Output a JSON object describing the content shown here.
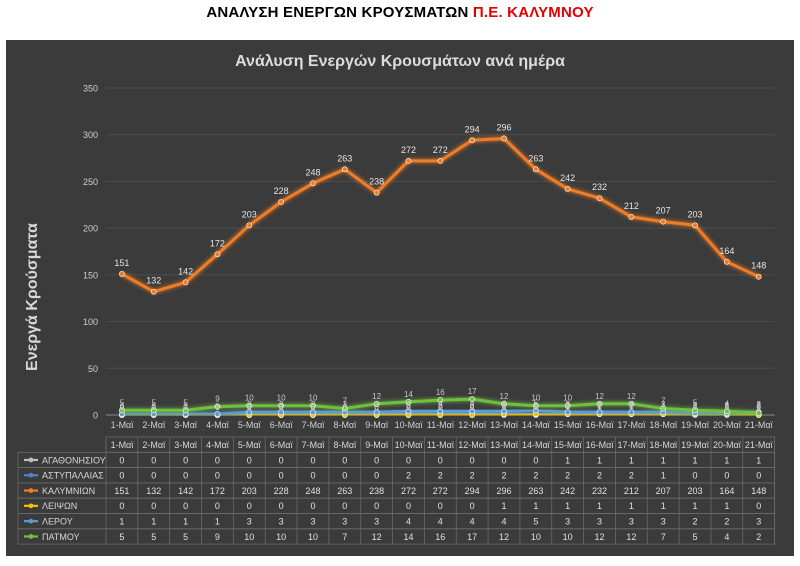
{
  "page": {
    "title_prefix": "ΑΝΑΛΥΣΗ ΕΝΕΡΓΩΝ ΚΡΟΥΣΜΑΤΩΝ ",
    "title_highlight": "Π.Ε. ΚΑΛΥΜΝΟΥ"
  },
  "chart_data": {
    "type": "line",
    "title": "Ανάλυση Ενεργών Κρουσμάτων ανά ημέρα",
    "ylabel": "Ενεργά Κρούσματα",
    "xlabel": "",
    "ylim": [
      0,
      350
    ],
    "yticks": [
      0,
      50,
      100,
      150,
      200,
      250,
      300,
      350
    ],
    "grid": true,
    "legend": "data-table",
    "categories": [
      "1-Μαϊ",
      "2-Μαϊ",
      "3-Μαϊ",
      "4-Μαϊ",
      "5-Μαϊ",
      "6-Μαϊ",
      "7-Μαϊ",
      "8-Μαϊ",
      "9-Μαϊ",
      "10-Μαϊ",
      "11-Μαϊ",
      "12-Μαϊ",
      "13-Μαϊ",
      "14-Μαϊ",
      "15-Μαϊ",
      "16-Μαϊ",
      "17-Μαϊ",
      "18-Μαϊ",
      "19-Μαϊ",
      "20-Μαϊ",
      "21-Μαϊ"
    ],
    "series": [
      {
        "name": "ΑΓΑΘΟΝΗΣΙΟΥ",
        "color": "#bfbfbf",
        "values": [
          0,
          0,
          0,
          0,
          0,
          0,
          0,
          0,
          0,
          0,
          0,
          0,
          0,
          0,
          1,
          1,
          1,
          1,
          1,
          1,
          1
        ]
      },
      {
        "name": "ΑΣΤΥΠΑΛΑΙΑΣ",
        "color": "#4a86c8",
        "values": [
          0,
          0,
          0,
          0,
          0,
          0,
          0,
          0,
          0,
          2,
          2,
          2,
          2,
          2,
          2,
          2,
          2,
          1,
          0,
          0,
          0
        ]
      },
      {
        "name": "ΚΑΛΥΜΝΙΩΝ",
        "color": "#f07c28",
        "values": [
          151,
          132,
          142,
          172,
          203,
          228,
          248,
          263,
          238,
          272,
          272,
          294,
          296,
          263,
          242,
          232,
          212,
          207,
          203,
          164,
          148
        ]
      },
      {
        "name": "ΛΕΙΨΩΝ",
        "color": "#f2c200",
        "values": [
          0,
          0,
          0,
          0,
          0,
          0,
          0,
          0,
          0,
          0,
          0,
          0,
          1,
          1,
          1,
          1,
          1,
          1,
          1,
          1,
          0
        ]
      },
      {
        "name": "ΛΕΡΟΥ",
        "color": "#5b9bd5",
        "values": [
          1,
          1,
          1,
          1,
          3,
          3,
          3,
          3,
          3,
          4,
          4,
          4,
          4,
          5,
          3,
          3,
          3,
          3,
          2,
          2,
          3
        ]
      },
      {
        "name": "ΠΑΤΜΟΥ",
        "color": "#70c040",
        "values": [
          5,
          5,
          5,
          9,
          10,
          10,
          10,
          7,
          12,
          14,
          16,
          17,
          12,
          10,
          10,
          12,
          12,
          7,
          5,
          4,
          2
        ]
      }
    ]
  }
}
